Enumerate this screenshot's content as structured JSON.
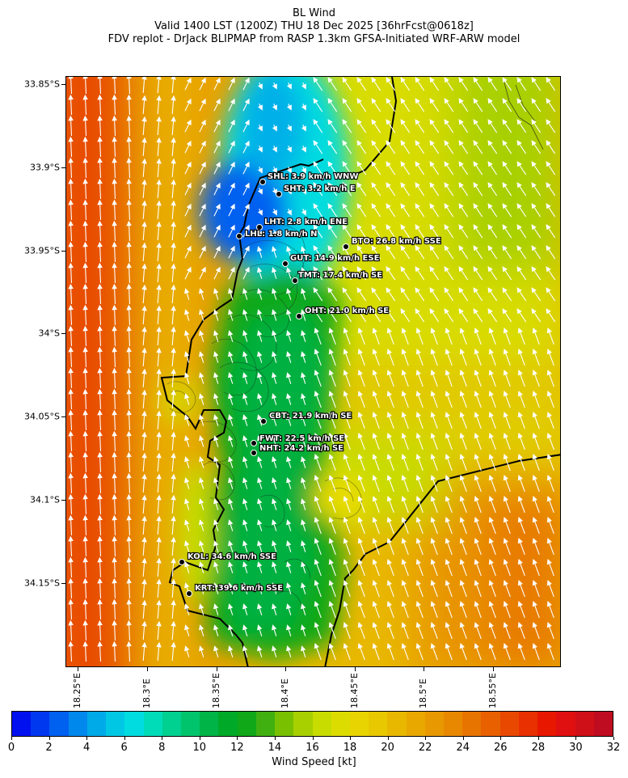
{
  "header": {
    "line1": "BL Wind",
    "line2": "Valid 1400 LST (1200Z) THU 18 Dec 2025 [36hrFcst@0618z]",
    "line3": "FDV replot - DrJack BLIPMAP from RASP 1.3km GFSA-Initiated WRF-ARW model"
  },
  "axes": {
    "lat_ticks": [
      "33.85°S",
      "33.9°S",
      "33.95°S",
      "34°S",
      "34.05°S",
      "34.1°S",
      "34.15°S"
    ],
    "lon_ticks": [
      "18.25°E",
      "18.3°E",
      "18.35°E",
      "18.4°E",
      "18.45°E",
      "18.5°E",
      "18.55°E"
    ]
  },
  "stations": [
    {
      "label": "SHL: 3.9 km/h WNW"
    },
    {
      "label": "SHT: 3.2 km/h E"
    },
    {
      "label": "LHT: 2.8 km/h ENE"
    },
    {
      "label": "LHL: 1.8 km/h N"
    },
    {
      "label": "BTO: 26.8 km/h SSE"
    },
    {
      "label": "GUT: 14.9 km/h ESE"
    },
    {
      "label": "TMT: 17.4 km/h SE"
    },
    {
      "label": "OHT: 21.0 km/h SE"
    },
    {
      "label": "CBT: 21.9 km/h SE"
    },
    {
      "label": "FWT: 22.5 km/h SE"
    },
    {
      "label": "NHT: 24.2 km/h SE"
    },
    {
      "label": "KOL: 34.6 km/h SSE"
    },
    {
      "label": "KRT: 39.6 km/h SSE"
    }
  ],
  "colorbar": {
    "title": "Wind Speed [kt]",
    "ticks": [
      "0",
      "2",
      "4",
      "6",
      "8",
      "10",
      "12",
      "14",
      "16",
      "18",
      "20",
      "22",
      "24",
      "26",
      "28",
      "30",
      "32"
    ],
    "colors": [
      "#0010ee",
      "#0038f0",
      "#0060f0",
      "#0088ec",
      "#00aae8",
      "#00c8e4",
      "#00dce0",
      "#00dcb8",
      "#00d090",
      "#00c46c",
      "#00b448",
      "#00aa28",
      "#10a818",
      "#40b010",
      "#78c000",
      "#a8d000",
      "#c8dc00",
      "#dcdc00",
      "#e8d400",
      "#e8c800",
      "#e8b800",
      "#e8a800",
      "#e89800",
      "#e88800",
      "#e87400",
      "#e86000",
      "#e84800",
      "#e83000",
      "#e81800",
      "#e01010",
      "#d01018",
      "#c00c20"
    ]
  }
}
